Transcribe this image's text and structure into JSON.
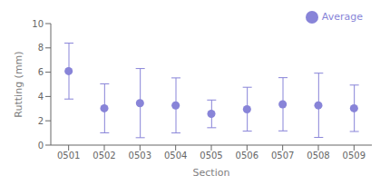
{
  "chart_data": {
    "type": "scatter",
    "xlabel": "Section",
    "ylabel": "Rutting (mm)",
    "categories": [
      "0501",
      "0502",
      "0503",
      "0504",
      "0505",
      "0506",
      "0507",
      "0508",
      "0509"
    ],
    "series": [
      {
        "name": "Average",
        "color": "#8884d8",
        "values": [
          6.09,
          3.03,
          3.45,
          3.26,
          2.57,
          2.95,
          3.36,
          3.27,
          3.03
        ],
        "highs": [
          8.39,
          5.04,
          6.3,
          5.53,
          3.71,
          4.76,
          5.55,
          5.92,
          4.94
        ],
        "lows": [
          3.79,
          1.01,
          0.61,
          1.0,
          1.43,
          1.15,
          1.17,
          0.63,
          1.12
        ]
      }
    ],
    "ylim": [
      0,
      10
    ],
    "yticks": [
      0,
      2,
      4,
      6,
      8,
      10
    ],
    "grid": false,
    "legend": "upper right"
  }
}
